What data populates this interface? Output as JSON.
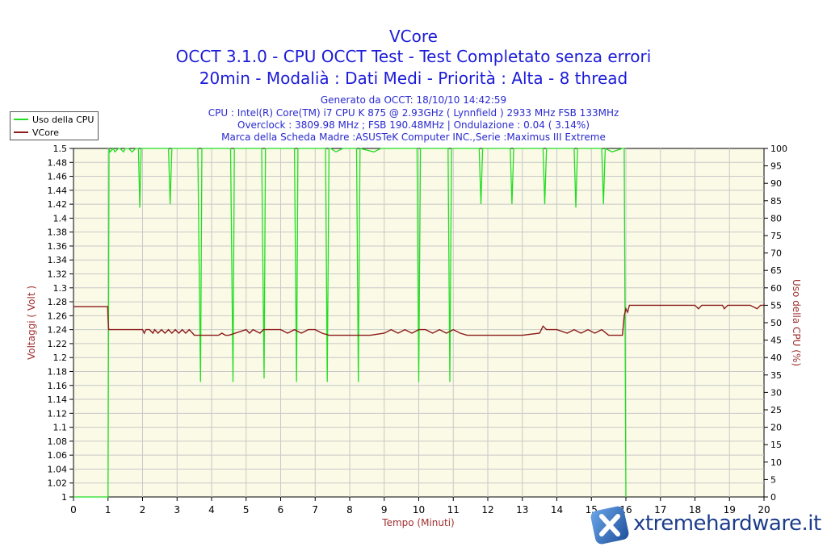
{
  "header": {
    "title": "VCore",
    "subtitle1": "OCCT 3.1.0 - CPU OCCT Test - Test Completato senza errori",
    "subtitle2": "20min - Modalià : Dati Medi - Priorità : Alta - 8 thread",
    "info1": "Generato da OCCT: 18/10/10 14:42:59",
    "info2": "CPU : Intel(R) Core(TM) i7 CPU K 875 @ 2.93GHz ( Lynnfield ) 2933 MHz FSB 133MHz",
    "info3": "Overclock : 3809.98 MHz ; FSB 190.48MHz | Ondulazione : 0.04 ( 3.14%)",
    "info4": "Marca della Scheda Madre :ASUSTeK Computer INC.,Serie :Maximus III Extreme"
  },
  "legend": {
    "items": [
      {
        "label": "Uso della CPU",
        "color": "#22dd22"
      },
      {
        "label": "VCore",
        "color": "#8b1a1a"
      }
    ]
  },
  "watermark": "xtremehardware.it",
  "colors": {
    "plot_bg": "#fafae6",
    "grid": "#c8c8c8",
    "cpu": "#22dd22",
    "vcore": "#8b1a1a",
    "title": "#1c1cd8",
    "axis_label": "#a03030"
  },
  "chart_data": {
    "type": "line",
    "xlabel": "Tempo (Minuti)",
    "ylabel": "Voltaggi ( Volt )",
    "y2label": "Uso della CPU (%)",
    "xlim": [
      0,
      20
    ],
    "ylim": [
      1,
      1.5
    ],
    "y2lim": [
      0,
      100
    ],
    "xticks": [
      "0",
      "1",
      "2",
      "3",
      "4",
      "5",
      "6",
      "7",
      "8",
      "9",
      "10",
      "11",
      "12",
      "13",
      "14",
      "15",
      "16",
      "17",
      "18",
      "19",
      "20"
    ],
    "yticks": [
      "1",
      "1.02",
      "1.04",
      "1.06",
      "1.08",
      "1.1",
      "1.12",
      "1.14",
      "1.16",
      "1.18",
      "1.2",
      "1.22",
      "1.24",
      "1.26",
      "1.28",
      "1.3",
      "1.32",
      "1.34",
      "1.36",
      "1.38",
      "1.4",
      "1.42",
      "1.44",
      "1.46",
      "1.48",
      "1.5"
    ],
    "y2ticks": [
      "0",
      "5",
      "10",
      "15",
      "20",
      "25",
      "30",
      "35",
      "40",
      "45",
      "50",
      "55",
      "60",
      "65",
      "70",
      "75",
      "80",
      "85",
      "90",
      "95",
      "100"
    ],
    "grid": true,
    "legend_position": "top-left",
    "series": [
      {
        "name": "VCore",
        "axis": "left",
        "x": [
          0,
          0.99,
          1.0,
          1.02,
          2.0,
          2.05,
          2.1,
          2.2,
          2.3,
          2.35,
          2.45,
          2.55,
          2.65,
          2.75,
          2.85,
          2.95,
          3.05,
          3.15,
          3.25,
          3.35,
          3.45,
          3.5,
          4.2,
          4.3,
          4.4,
          4.5,
          5.0,
          5.1,
          5.2,
          5.4,
          5.5,
          5.6,
          6.0,
          6.2,
          6.4,
          6.6,
          6.8,
          7.0,
          7.2,
          7.4,
          7.5,
          8.0,
          8.6,
          9.0,
          9.2,
          9.4,
          9.6,
          9.8,
          10.0,
          10.2,
          10.4,
          10.6,
          10.8,
          11.0,
          11.2,
          11.4,
          11.5,
          12.0,
          13.0,
          13.5,
          13.6,
          13.7,
          14.0,
          14.3,
          14.5,
          14.7,
          14.9,
          15.1,
          15.3,
          15.5,
          15.9,
          15.95,
          16.0,
          16.05,
          16.1,
          16.15,
          16.6,
          17.0,
          17.5,
          18.0,
          18.1,
          18.2,
          18.5,
          18.8,
          18.85,
          18.95,
          19.3,
          19.6,
          19.8,
          19.9,
          20.0
        ],
        "values": [
          1.273,
          1.273,
          1.255,
          1.24,
          1.24,
          1.235,
          1.24,
          1.24,
          1.235,
          1.24,
          1.235,
          1.24,
          1.235,
          1.24,
          1.235,
          1.24,
          1.235,
          1.24,
          1.235,
          1.24,
          1.235,
          1.232,
          1.232,
          1.235,
          1.232,
          1.232,
          1.24,
          1.235,
          1.24,
          1.235,
          1.24,
          1.24,
          1.24,
          1.235,
          1.24,
          1.235,
          1.24,
          1.24,
          1.235,
          1.232,
          1.232,
          1.232,
          1.232,
          1.235,
          1.24,
          1.235,
          1.24,
          1.235,
          1.24,
          1.24,
          1.235,
          1.24,
          1.235,
          1.24,
          1.235,
          1.232,
          1.232,
          1.232,
          1.232,
          1.235,
          1.245,
          1.24,
          1.24,
          1.235,
          1.24,
          1.235,
          1.24,
          1.235,
          1.24,
          1.232,
          1.232,
          1.26,
          1.27,
          1.265,
          1.275,
          1.275,
          1.275,
          1.275,
          1.275,
          1.275,
          1.27,
          1.275,
          1.275,
          1.275,
          1.27,
          1.275,
          1.275,
          1.275,
          1.27,
          1.275,
          1.275
        ]
      },
      {
        "name": "Uso della CPU",
        "axis": "right",
        "x": [
          0,
          0.98,
          1.0,
          1.03,
          1.06,
          1.15,
          1.2,
          1.3,
          1.35,
          1.45,
          1.5,
          1.6,
          1.7,
          1.8,
          1.88,
          1.92,
          1.96,
          2.0,
          2.3,
          2.75,
          2.8,
          2.85,
          3.2,
          3.5,
          3.6,
          3.68,
          3.72,
          3.76,
          3.85,
          4.2,
          4.55,
          4.62,
          4.66,
          4.7,
          5.0,
          5.45,
          5.52,
          5.56,
          5.6,
          6.0,
          6.4,
          6.46,
          6.5,
          6.55,
          7.0,
          7.3,
          7.35,
          7.4,
          7.45,
          7.6,
          7.8,
          8.2,
          8.25,
          8.3,
          8.7,
          8.9,
          9.0,
          9.5,
          9.95,
          10.0,
          10.05,
          10.5,
          10.85,
          10.9,
          10.95,
          11.3,
          11.75,
          11.8,
          11.85,
          12.3,
          12.65,
          12.7,
          12.75,
          13.2,
          13.6,
          13.65,
          13.7,
          14.0,
          14.5,
          14.55,
          14.6,
          15.0,
          15.3,
          15.35,
          15.4,
          15.6,
          15.9,
          15.95,
          16.0
        ],
        "values": [
          0,
          0,
          0,
          100,
          99,
          100,
          99,
          100,
          100,
          99,
          100,
          100,
          99,
          100,
          100,
          83,
          100,
          100,
          100,
          100,
          84,
          100,
          100,
          100,
          100,
          33,
          100,
          100,
          100,
          100,
          100,
          33,
          100,
          100,
          100,
          100,
          34,
          100,
          100,
          100,
          100,
          33,
          100,
          100,
          100,
          100,
          33,
          100,
          100,
          99,
          100,
          100,
          33,
          100,
          99,
          100,
          100,
          100,
          100,
          33,
          100,
          100,
          100,
          33,
          100,
          100,
          100,
          84,
          100,
          100,
          100,
          84,
          100,
          100,
          100,
          84,
          100,
          100,
          100,
          83,
          100,
          100,
          100,
          84,
          100,
          99,
          100,
          100,
          0
        ]
      }
    ]
  }
}
